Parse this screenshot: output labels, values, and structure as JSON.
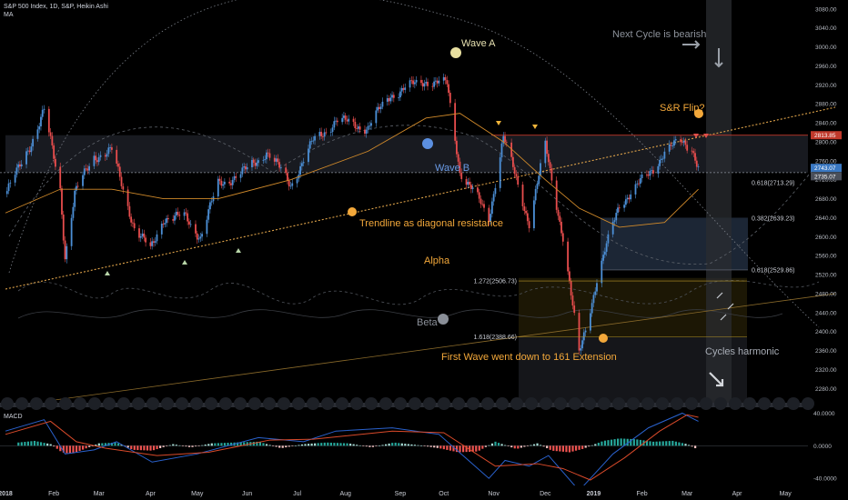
{
  "header": {
    "title": "S&P 500 Index, 1D, S&P, Heikin Ashi",
    "indicator": "MA",
    "macd_label": "MACD"
  },
  "chart_data": [
    {
      "type": "candlestick",
      "title": "S&P 500 Index, 1D, S&P, Heikin Ashi",
      "x_ticks": [
        "2018",
        "Feb",
        "Mar",
        "Apr",
        "May",
        "Jun",
        "Jul",
        "Aug",
        "Sep",
        "Oct",
        "Nov",
        "Dec",
        "2019",
        "Feb",
        "Mar",
        "Apr",
        "May"
      ],
      "ylim": [
        2250,
        3095
      ],
      "y_ticks": [
        2280,
        2320,
        2360,
        2400,
        2440,
        2480,
        2520,
        2560,
        2600,
        2640,
        2680,
        2720,
        2760,
        2800,
        2840,
        2880,
        2920,
        2960,
        3000,
        3040,
        3080
      ],
      "price_labels": [
        {
          "value": 2813.85,
          "text": "2813.85",
          "color": "#c0392b"
        },
        {
          "value": 2743.07,
          "text": "2743.07",
          "color": "#3a78c2"
        },
        {
          "value": 2735.07,
          "text": "2735.07",
          "color": "#4a4f5a"
        }
      ],
      "close_path": [
        [
          "2018-01-02",
          2690
        ],
        [
          "2018-01-10",
          2740
        ],
        [
          "2018-01-18",
          2800
        ],
        [
          "2018-01-26",
          2865
        ],
        [
          "2018-02-05",
          2700
        ],
        [
          "2018-02-08",
          2560
        ],
        [
          "2018-02-14",
          2690
        ],
        [
          "2018-02-26",
          2770
        ],
        [
          "2018-03-09",
          2780
        ],
        [
          "2018-03-23",
          2620
        ],
        [
          "2018-04-02",
          2570
        ],
        [
          "2018-04-10",
          2640
        ],
        [
          "2018-04-24",
          2640
        ],
        [
          "2018-05-03",
          2600
        ],
        [
          "2018-05-14",
          2710
        ],
        [
          "2018-06-01",
          2740
        ],
        [
          "2018-06-13",
          2780
        ],
        [
          "2018-06-28",
          2710
        ],
        [
          "2018-07-12",
          2800
        ],
        [
          "2018-07-26",
          2845
        ],
        [
          "2018-08-15",
          2830
        ],
        [
          "2018-08-29",
          2900
        ],
        [
          "2018-09-20",
          2930
        ],
        [
          "2018-10-03",
          2920
        ],
        [
          "2018-10-11",
          2740
        ],
        [
          "2018-10-29",
          2640
        ],
        [
          "2018-11-07",
          2810
        ],
        [
          "2018-11-23",
          2630
        ],
        [
          "2018-12-03",
          2790
        ],
        [
          "2018-12-14",
          2600
        ],
        [
          "2018-12-24",
          2350
        ],
        [
          "2019-01-04",
          2510
        ],
        [
          "2019-01-18",
          2670
        ],
        [
          "2019-02-05",
          2730
        ],
        [
          "2019-02-15",
          2780
        ],
        [
          "2019-02-26",
          2800
        ],
        [
          "2019-03-04",
          2790
        ],
        [
          "2019-03-08",
          2745
        ]
      ],
      "moving_average": [
        [
          "2018-01-02",
          2650
        ],
        [
          "2018-02-05",
          2700
        ],
        [
          "2018-03-09",
          2700
        ],
        [
          "2018-04-10",
          2680
        ],
        [
          "2018-05-14",
          2680
        ],
        [
          "2018-06-28",
          2720
        ],
        [
          "2018-08-15",
          2780
        ],
        [
          "2018-09-20",
          2850
        ],
        [
          "2018-10-11",
          2860
        ],
        [
          "2018-11-07",
          2800
        ],
        [
          "2018-12-03",
          2720
        ],
        [
          "2018-12-24",
          2660
        ],
        [
          "2019-01-18",
          2620
        ],
        [
          "2019-02-15",
          2630
        ],
        [
          "2019-03-08",
          2700
        ]
      ],
      "levels": [
        {
          "label": "0.618(2713.29)",
          "value": 2713.29
        },
        {
          "label": "0.382(2639.23)",
          "value": 2639.23
        },
        {
          "label": "0.618(2529.86)",
          "value": 2529.86
        },
        {
          "label": "1.272(2506.73)",
          "value": 2506.73
        },
        {
          "label": "1.618(2388.66)",
          "value": 2388.66
        }
      ],
      "annotations": {
        "wave_a": "Wave A",
        "wave_b": "Wave B",
        "sr_flip": "S&R Flip?",
        "next_cycle": "Next Cycle is bearish",
        "trendline": "Trendline as diagonal resistance",
        "alpha": "Alpha",
        "beta": "Beta",
        "first_wave": "First Wave went down to 161 Extension",
        "cycles": "Cycles harmonic"
      }
    },
    {
      "type": "bar",
      "title": "MACD",
      "ylim": [
        -42,
        45
      ],
      "y_ticks": [
        {
          "value": 40,
          "text": "40.0000"
        },
        {
          "value": 0,
          "text": "0.0000"
        },
        {
          "value": -40,
          "text": "-40.0000"
        }
      ],
      "histogram": [
        [
          "2018-01-10",
          4
        ],
        [
          "2018-01-20",
          6
        ],
        [
          "2018-01-30",
          2
        ],
        [
          "2018-02-06",
          -8
        ],
        [
          "2018-02-12",
          -10
        ],
        [
          "2018-02-20",
          -4
        ],
        [
          "2018-03-01",
          3
        ],
        [
          "2018-03-12",
          4
        ],
        [
          "2018-03-22",
          -5
        ],
        [
          "2018-04-03",
          -6
        ],
        [
          "2018-04-16",
          2
        ],
        [
          "2018-04-27",
          -2
        ],
        [
          "2018-05-10",
          3
        ],
        [
          "2018-05-24",
          4
        ],
        [
          "2018-06-08",
          5
        ],
        [
          "2018-06-22",
          -3
        ],
        [
          "2018-07-06",
          2
        ],
        [
          "2018-07-20",
          4
        ],
        [
          "2018-08-03",
          3
        ],
        [
          "2018-08-17",
          -2
        ],
        [
          "2018-08-31",
          4
        ],
        [
          "2018-09-14",
          1
        ],
        [
          "2018-09-28",
          -3
        ],
        [
          "2018-10-10",
          -8
        ],
        [
          "2018-10-22",
          -7
        ],
        [
          "2018-11-02",
          5
        ],
        [
          "2018-11-15",
          -4
        ],
        [
          "2018-11-28",
          3
        ],
        [
          "2018-12-07",
          -6
        ],
        [
          "2018-12-18",
          -8
        ],
        [
          "2018-12-26",
          -4
        ],
        [
          "2019-01-08",
          6
        ],
        [
          "2019-01-18",
          9
        ],
        [
          "2019-01-28",
          8
        ],
        [
          "2019-02-08",
          5
        ],
        [
          "2019-02-20",
          6
        ],
        [
          "2019-03-01",
          2
        ],
        [
          "2019-03-07",
          -4
        ]
      ],
      "macd_line": [
        [
          "2018-01-02",
          18
        ],
        [
          "2018-01-26",
          32
        ],
        [
          "2018-02-08",
          -10
        ],
        [
          "2018-02-26",
          -5
        ],
        [
          "2018-03-12",
          5
        ],
        [
          "2018-04-03",
          -20
        ],
        [
          "2018-05-01",
          -10
        ],
        [
          "2018-06-08",
          10
        ],
        [
          "2018-07-06",
          5
        ],
        [
          "2018-07-26",
          18
        ],
        [
          "2018-08-30",
          22
        ],
        [
          "2018-09-28",
          14
        ],
        [
          "2018-10-29",
          -40
        ],
        [
          "2018-11-08",
          -18
        ],
        [
          "2018-11-23",
          -25
        ],
        [
          "2018-12-05",
          -12
        ],
        [
          "2018-12-24",
          -55
        ],
        [
          "2019-01-14",
          -10
        ],
        [
          "2019-02-05",
          22
        ],
        [
          "2019-02-26",
          40
        ],
        [
          "2019-03-08",
          30
        ]
      ],
      "signal_line": [
        [
          "2018-01-02",
          14
        ],
        [
          "2018-01-30",
          30
        ],
        [
          "2018-02-15",
          5
        ],
        [
          "2018-03-05",
          -3
        ],
        [
          "2018-04-06",
          -12
        ],
        [
          "2018-05-08",
          -8
        ],
        [
          "2018-06-15",
          7
        ],
        [
          "2018-07-12",
          8
        ],
        [
          "2018-08-30",
          18
        ],
        [
          "2018-10-01",
          16
        ],
        [
          "2018-11-02",
          -25
        ],
        [
          "2018-11-28",
          -22
        ],
        [
          "2018-12-14",
          -28
        ],
        [
          "2018-12-31",
          -42
        ],
        [
          "2019-01-21",
          -15
        ],
        [
          "2019-02-12",
          18
        ],
        [
          "2019-03-01",
          38
        ],
        [
          "2019-03-08",
          35
        ]
      ]
    }
  ],
  "time_axis": [
    "2018",
    "Feb",
    "Mar",
    "Apr",
    "May",
    "Jun",
    "Jul",
    "Aug",
    "Sep",
    "Oct",
    "Nov",
    "Dec",
    "2019",
    "Feb",
    "Mar",
    "Apr",
    "May"
  ],
  "colors": {
    "up": "#4c8fd6",
    "down": "#e84d4d",
    "ma": "#d18a2a",
    "trendline": "#e0a44a",
    "resistance": "#c0392b",
    "fib_box_fill": "#c8a024",
    "macd": "#2a62ce",
    "signal": "#d94a2a",
    "hist_up": "#26a69a",
    "hist_down": "#ef5350"
  }
}
